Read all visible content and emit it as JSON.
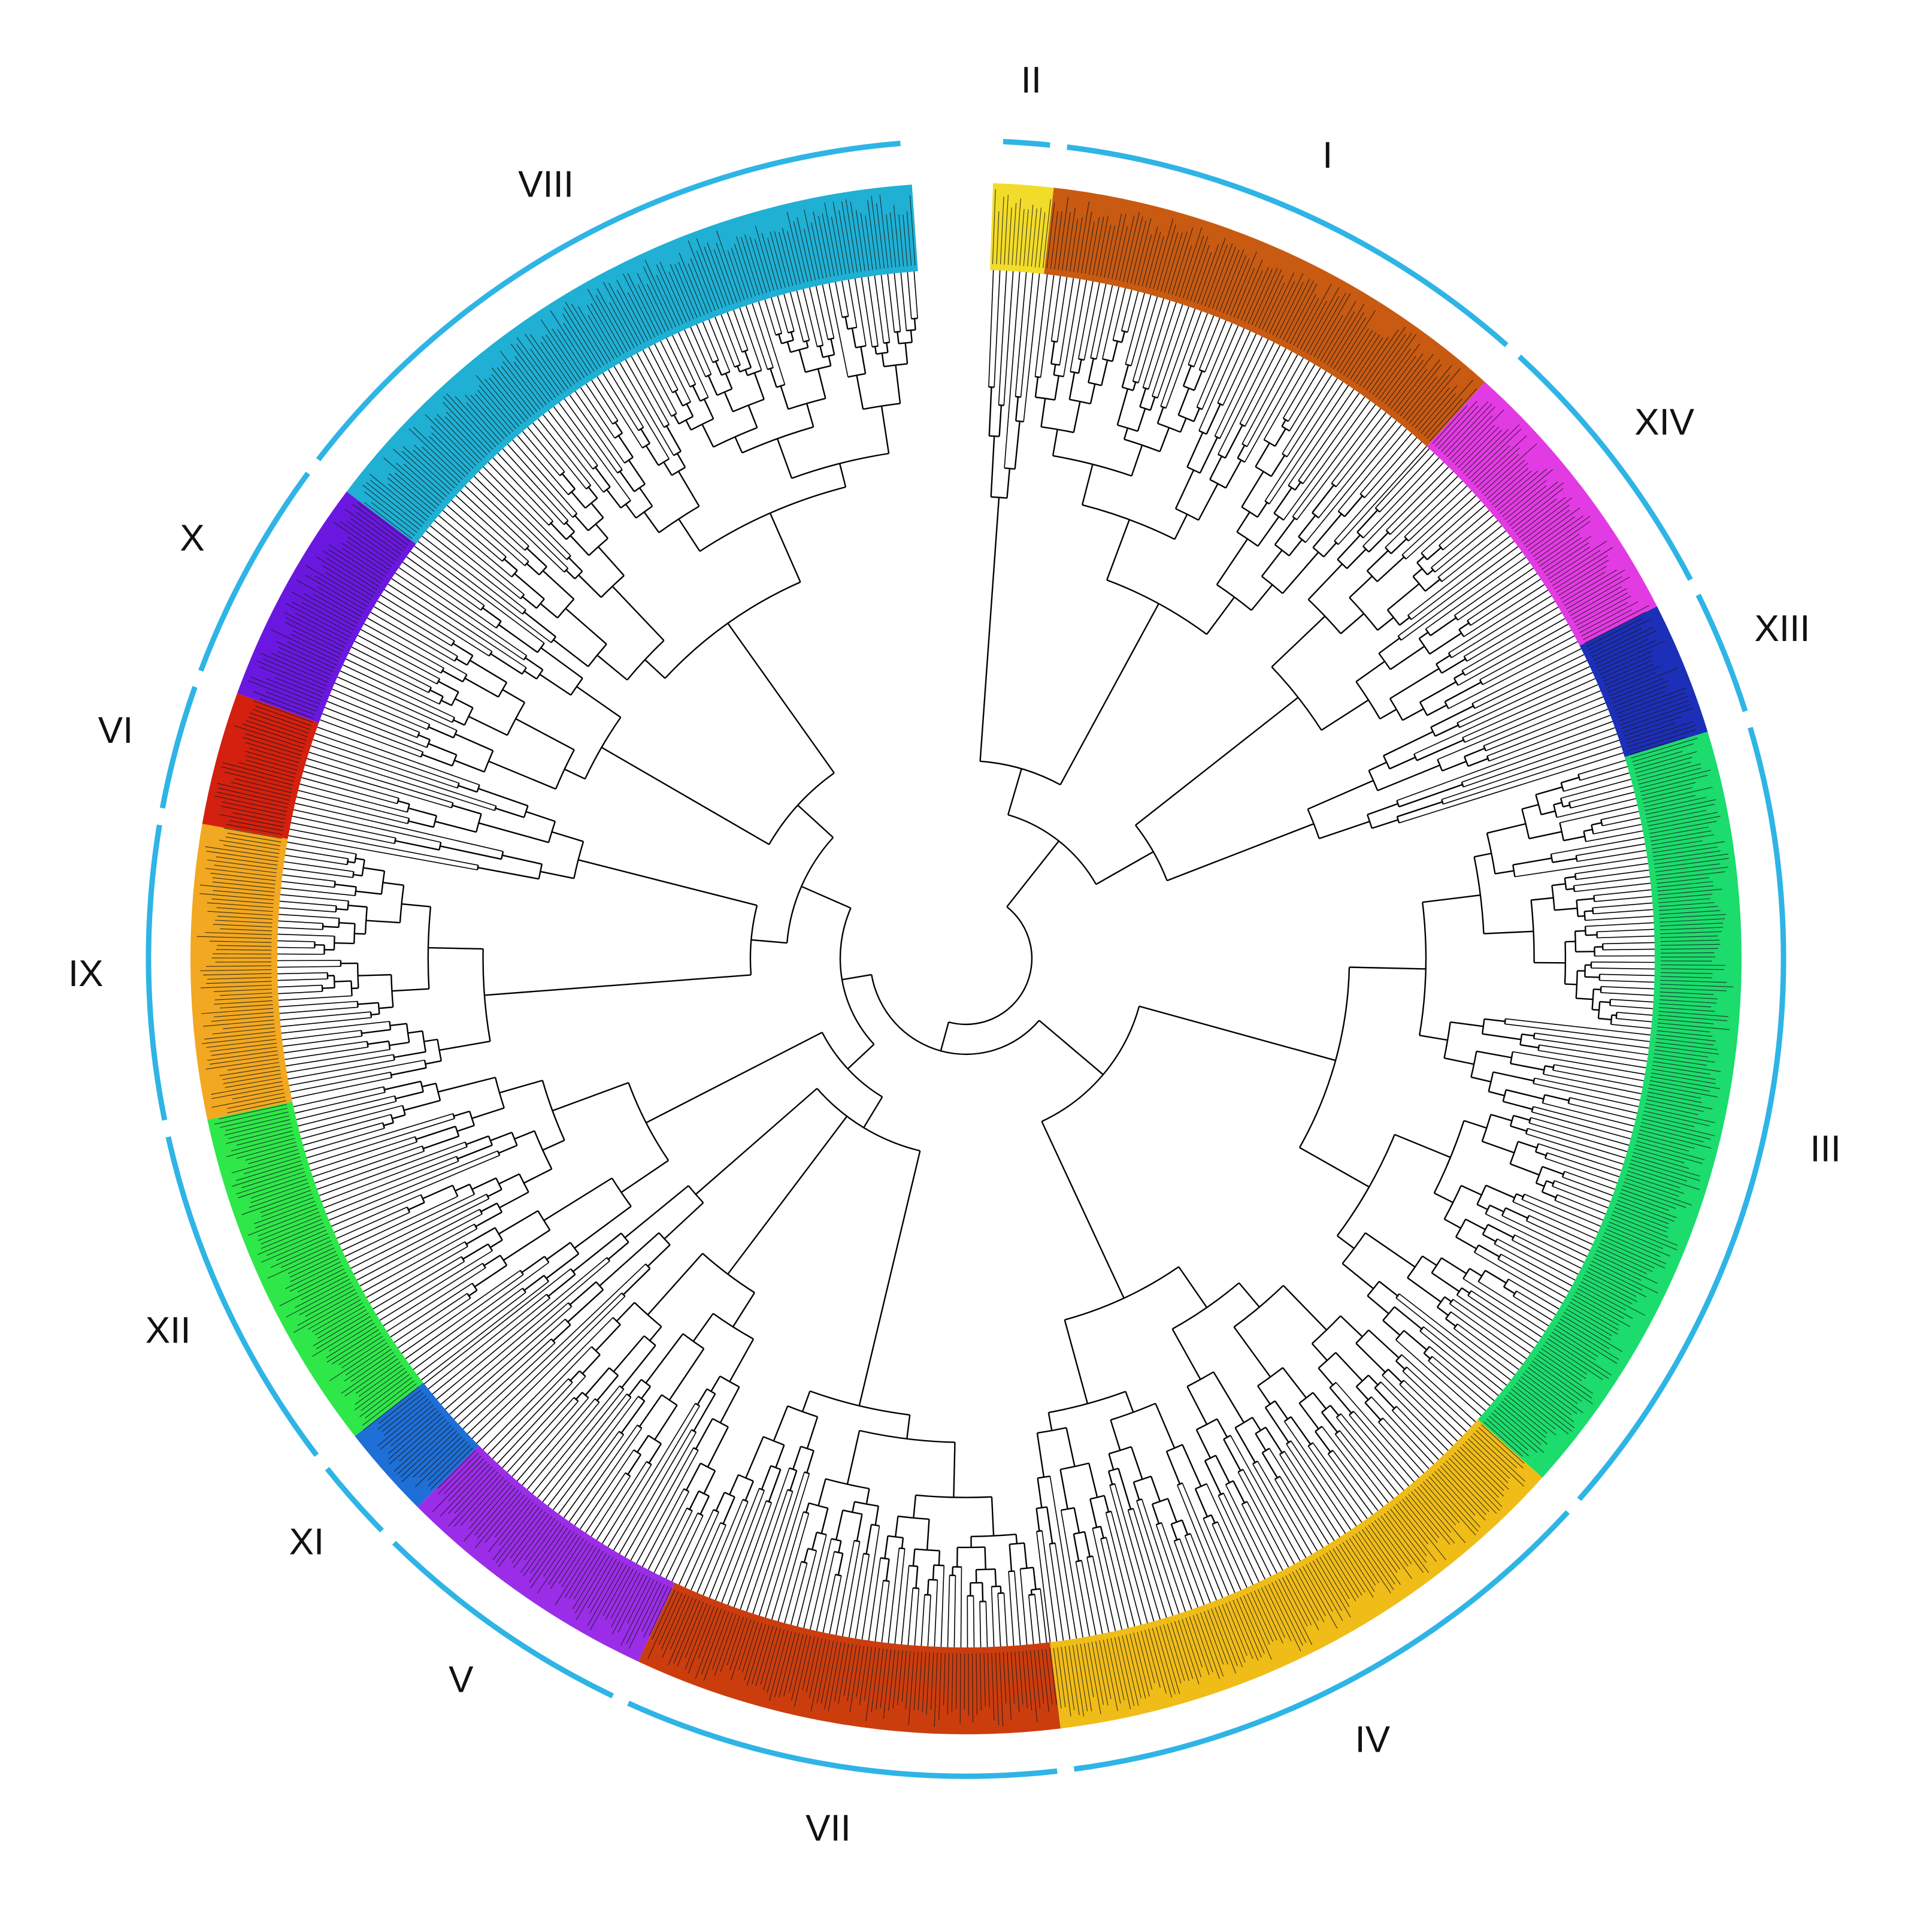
{
  "figure": {
    "type": "circular phylogenetic tree",
    "arc_color": "#2fb4e6",
    "branch_color": "#000000"
  },
  "clades": [
    {
      "id": "II",
      "label": "II",
      "color": "#f2dc2a",
      "start_deg": 2,
      "end_deg": 6.5
    },
    {
      "id": "I",
      "label": "I",
      "color": "#c85a12",
      "start_deg": 6.5,
      "end_deg": 42
    },
    {
      "id": "XIV",
      "label": "XIV",
      "color": "#e33be3",
      "start_deg": 42,
      "end_deg": 63
    },
    {
      "id": "XIII",
      "label": "XIII",
      "color": "#1c2fb8",
      "start_deg": 63,
      "end_deg": 73
    },
    {
      "id": "III",
      "label": "III",
      "color": "#1bdc6c",
      "start_deg": 73,
      "end_deg": 132
    },
    {
      "id": "IV",
      "label": "IV",
      "color": "#f0bc18",
      "start_deg": 132,
      "end_deg": 173
    },
    {
      "id": "VII",
      "label": "VII",
      "color": "#cc3d0e",
      "start_deg": 173,
      "end_deg": 205
    },
    {
      "id": "V",
      "label": "V",
      "color": "#9b2de8",
      "start_deg": 205,
      "end_deg": 225
    },
    {
      "id": "XI",
      "label": "XI",
      "color": "#1e6fd6",
      "start_deg": 225,
      "end_deg": 232
    },
    {
      "id": "XII",
      "label": "XII",
      "color": "#2ee84a",
      "start_deg": 232,
      "end_deg": 258
    },
    {
      "id": "IX",
      "label": "IX",
      "color": "#f2a820",
      "start_deg": 258,
      "end_deg": 280
    },
    {
      "id": "VI",
      "label": "VI",
      "color": "#d4200e",
      "start_deg": 280,
      "end_deg": 290
    },
    {
      "id": "X",
      "label": "X",
      "color": "#6a18e0",
      "start_deg": 290,
      "end_deg": 307
    },
    {
      "id": "VIII",
      "label": "VIII",
      "color": "#1fb0d4",
      "start_deg": 307,
      "end_deg": 356
    }
  ]
}
